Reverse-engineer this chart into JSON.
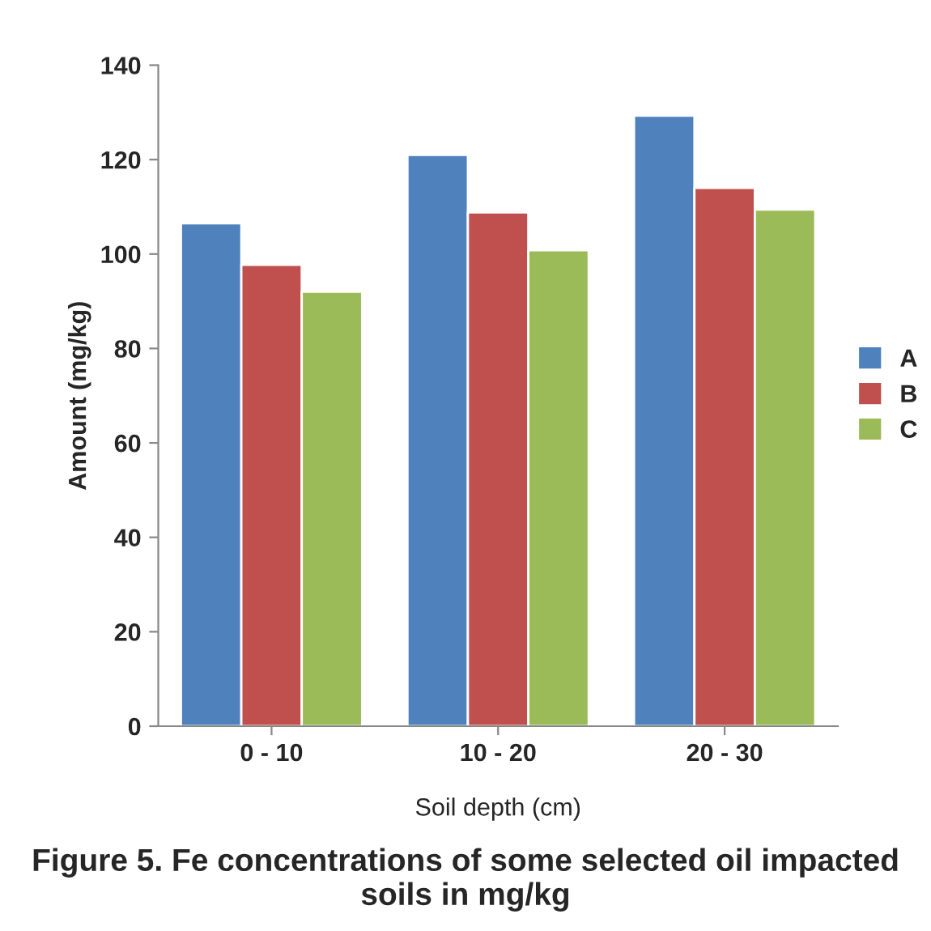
{
  "chart_data": {
    "type": "bar",
    "title": "Figure 5. Fe concentrations of some selected oil impacted soils in mg/kg",
    "xlabel": "Soil depth (cm)",
    "ylabel": "Amount (mg/kg)",
    "categories": [
      "0 - 10",
      "10 - 20",
      "20 - 30"
    ],
    "series": [
      {
        "name": "A",
        "color": "#4f81bd",
        "values": [
          106.5,
          121,
          129.3
        ]
      },
      {
        "name": "B",
        "color": "#c0504d",
        "values": [
          97.7,
          108.8,
          114
        ]
      },
      {
        "name": "C",
        "color": "#9bbb59",
        "values": [
          92,
          100.8,
          109.4
        ]
      }
    ],
    "ylim": [
      0,
      140
    ],
    "yticks": [
      0,
      20,
      40,
      60,
      80,
      100,
      120,
      140
    ],
    "grid": false,
    "legend": "right"
  }
}
